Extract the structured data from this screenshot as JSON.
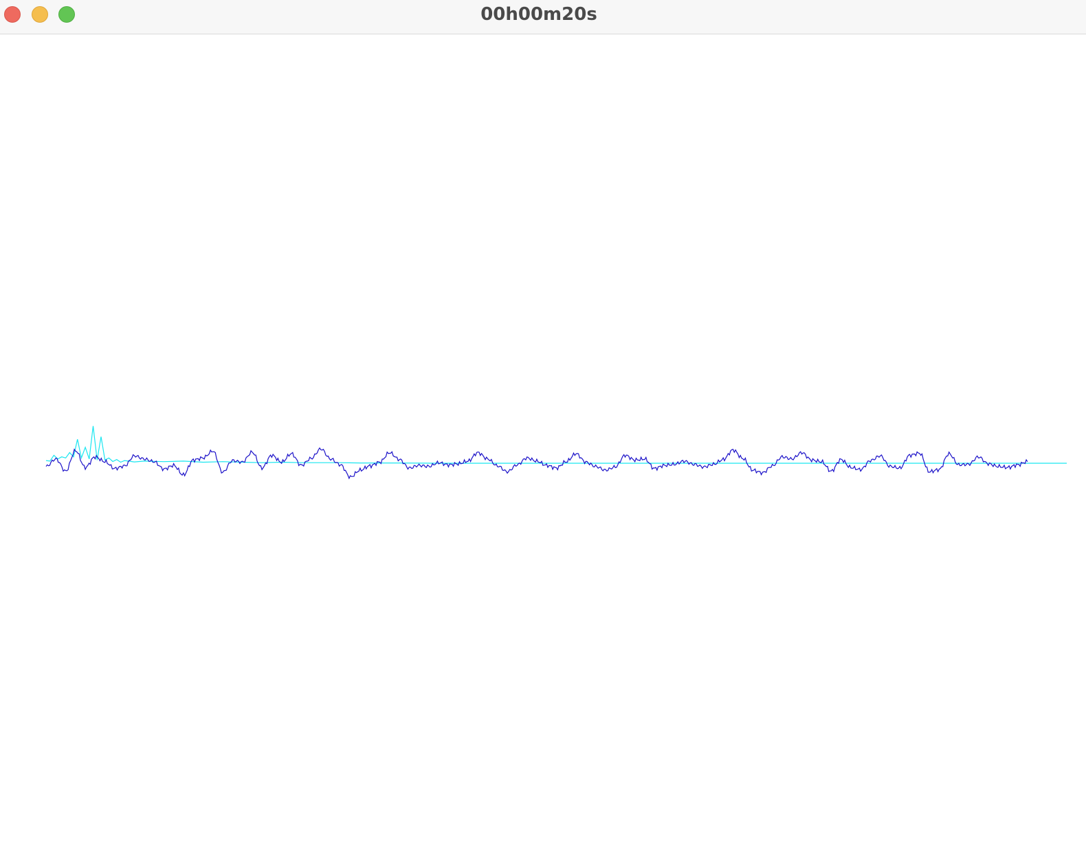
{
  "window": {
    "title": "00h00m20s",
    "buttons": {
      "close": "close-button",
      "minimize": "minimize-button",
      "zoom": "zoom-button"
    }
  },
  "colors": {
    "signal": "#1a10c8",
    "reference": "#19e6f0",
    "titlebar": "#f7f7f7"
  },
  "chart_data": {
    "type": "line",
    "title": "",
    "xlabel": "",
    "ylabel": "",
    "grid": false,
    "series": [
      {
        "color": "#1a10c8",
        "x": [
          0,
          5,
          10,
          15,
          20,
          25,
          30,
          35,
          40,
          45,
          50,
          55,
          60,
          65,
          70,
          75,
          80,
          85,
          90,
          95,
          100,
          105,
          110,
          115,
          120,
          125,
          130,
          135,
          140,
          145,
          150,
          155,
          160,
          165,
          170,
          175,
          180,
          185,
          190,
          195,
          200,
          205,
          210,
          215,
          220,
          225,
          230,
          235,
          240,
          245,
          250,
          255,
          260,
          265,
          270,
          275,
          280,
          285,
          290,
          295,
          300,
          305,
          310,
          315,
          320,
          325,
          330,
          335,
          340,
          345,
          350,
          355,
          360,
          365,
          370,
          375,
          380,
          385,
          390,
          395,
          400,
          405,
          410,
          415,
          420,
          425,
          430,
          435,
          440,
          445,
          450,
          455,
          460,
          465,
          470,
          475,
          480,
          485,
          490,
          495,
          500
        ],
        "y": [
          -0.6,
          0.8,
          -1.5,
          2.4,
          -0.8,
          1.2,
          0.3,
          -1.0,
          -0.5,
          1.4,
          0.8,
          0.3,
          -1.1,
          -0.4,
          -2.2,
          0.6,
          1.0,
          2.3,
          -1.7,
          0.5,
          0.2,
          2.1,
          -0.9,
          1.5,
          0.2,
          1.8,
          -0.4,
          0.9,
          2.7,
          0.8,
          -0.3,
          -2.6,
          -1.3,
          -0.5,
          0.2,
          2.0,
          0.7,
          -0.9,
          -0.4,
          -0.6,
          0.1,
          -0.3,
          -0.1,
          0.4,
          2.0,
          0.8,
          -0.5,
          -1.6,
          -0.3,
          1.0,
          0.4,
          -0.4,
          -0.9,
          0.3,
          1.8,
          0.2,
          -0.6,
          -1.3,
          -0.7,
          1.5,
          0.6,
          0.8,
          -1.0,
          -0.4,
          -0.2,
          0.4,
          -0.2,
          -0.7,
          -0.2,
          0.7,
          2.5,
          0.9,
          -1.3,
          -1.8,
          -0.5,
          1.2,
          0.8,
          2.0,
          0.6,
          0.3,
          -1.5,
          0.7,
          -0.8,
          -1.2,
          0.5,
          1.4,
          -0.6,
          -0.9,
          1.5,
          1.9,
          -1.6,
          -1.2,
          1.8,
          -0.3,
          -0.2,
          1.2,
          -0.1,
          -0.6,
          -0.8,
          -0.3,
          0.3
        ]
      },
      {
        "color": "#19e6f0",
        "x": [
          0,
          2,
          4,
          6,
          8,
          10,
          12,
          14,
          16,
          18,
          20,
          22,
          24,
          26,
          28,
          30,
          32,
          34,
          36,
          38,
          40,
          45,
          50,
          60,
          70,
          80,
          90,
          100,
          110,
          120,
          130,
          140,
          150,
          160,
          180,
          200,
          250,
          300,
          350,
          400,
          450,
          500,
          520
        ],
        "y": [
          0.5,
          1.0,
          1.5,
          2.0,
          1.2,
          2.5,
          2.0,
          3.0,
          4.5,
          2.5,
          3.0,
          2.0,
          7.0,
          1.5,
          5.0,
          1.5,
          1.0,
          0.8,
          0.7,
          0.5,
          0.5,
          0.6,
          0.4,
          0.3,
          0.4,
          0.2,
          0.3,
          0.2,
          0.1,
          0.2,
          0.1,
          0.1,
          0.1,
          0.05,
          0.05,
          0.0,
          0.0,
          0.0,
          0.0,
          0.0,
          0.0,
          0.0,
          0.0
        ]
      }
    ],
    "xlim": [
      0,
      520
    ],
    "ylim": [
      -8,
      8
    ]
  }
}
